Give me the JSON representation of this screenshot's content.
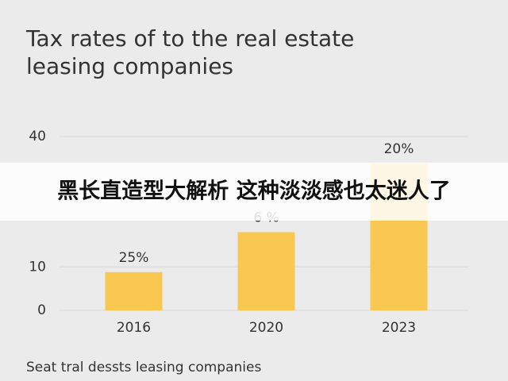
{
  "chart_data": {
    "type": "bar",
    "title": [
      "Tax rates of to the real estate",
      "leasing companies"
    ],
    "x_label": "Seat tral dessts leasing companies",
    "categories": [
      "2016",
      "2020",
      "2023"
    ],
    "values": [
      8.8,
      18,
      33.8
    ],
    "annotations": [
      "25%",
      "6 %",
      "20%"
    ],
    "color": "#f8c850",
    "ylim": [
      0,
      40
    ],
    "yticks": [
      0,
      10,
      40
    ],
    "grid": true
  },
  "banner": {
    "text": "黑长直造型大解析 这种淡淡感也太迷人了"
  }
}
